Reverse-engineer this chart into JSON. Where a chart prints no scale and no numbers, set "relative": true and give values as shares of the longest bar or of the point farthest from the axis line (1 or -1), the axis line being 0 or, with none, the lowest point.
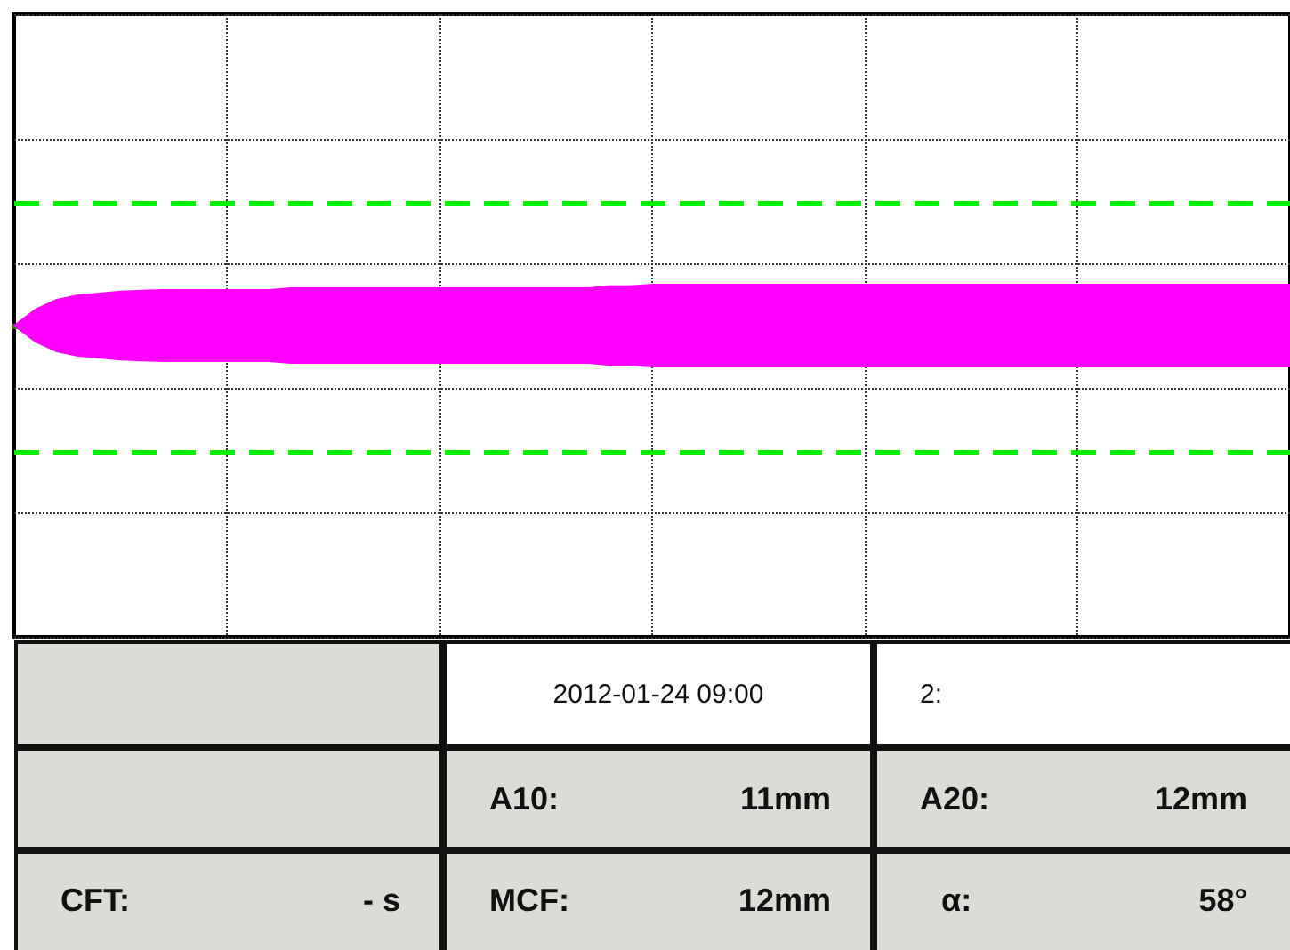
{
  "chart_data": {
    "type": "area",
    "relative": true,
    "grid": true,
    "categories": [
      null,
      null,
      null,
      null,
      null,
      null,
      null,
      null,
      null,
      null,
      null,
      null,
      null,
      null,
      null,
      null,
      null,
      null,
      null,
      null,
      null,
      null,
      null,
      null,
      null,
      null,
      null,
      null,
      null,
      null,
      null,
      null,
      null,
      null,
      null,
      null,
      null,
      null,
      null,
      null,
      null,
      null,
      null,
      null,
      null,
      null,
      null,
      null,
      null,
      null,
      null,
      null,
      null,
      null,
      null,
      null,
      null,
      null,
      null,
      null,
      null
    ],
    "series": [
      {
        "color": "#ff00ff",
        "values": [
          0,
          0.39,
          0.63,
          0.74,
          0.78,
          0.83,
          0.85,
          0.87,
          0.87,
          0.87,
          0.87,
          0.87,
          0.87,
          0.91,
          0.91,
          0.91,
          0.91,
          0.91,
          0.91,
          0.91,
          0.91,
          0.91,
          0.91,
          0.91,
          0.91,
          0.91,
          0.91,
          0.91,
          0.96,
          0.96,
          1,
          1,
          1,
          1,
          1,
          1,
          1,
          1,
          1,
          1,
          1,
          1,
          1,
          1,
          1,
          1,
          1,
          1,
          1,
          1,
          1,
          1,
          1,
          1,
          1,
          1,
          1,
          1,
          1,
          1,
          1
        ]
      },
      {
        "color": "#ff00ff",
        "values": [
          0,
          -0.39,
          -0.63,
          -0.74,
          -0.78,
          -0.83,
          -0.85,
          -0.87,
          -0.87,
          -0.87,
          -0.87,
          -0.87,
          -0.87,
          -0.91,
          -0.91,
          -0.91,
          -0.91,
          -0.91,
          -0.91,
          -0.91,
          -0.91,
          -0.91,
          -0.91,
          -0.91,
          -0.91,
          -0.91,
          -0.91,
          -0.91,
          -0.96,
          -0.96,
          -1,
          -1,
          -1,
          -1,
          -1,
          -1,
          -1,
          -1,
          -1,
          -1,
          -1,
          -1,
          -1,
          -1,
          -1,
          -1,
          -1,
          -1,
          -1,
          -1,
          -1,
          -1,
          -1,
          -1,
          -1,
          -1,
          -1,
          -1,
          -1,
          -1,
          -1
        ]
      }
    ],
    "ref_lines": [
      {
        "axis": "y",
        "value": 0,
        "color": "#3d7a00",
        "line_style": "solid"
      },
      {
        "axis": "y",
        "value": 3.0,
        "color": "#00ee00",
        "line_style": "dashed"
      },
      {
        "axis": "y",
        "value": -3.1,
        "color": "#00ee00",
        "line_style": "dashed"
      }
    ],
    "annotations": [
      "2012-01-24 09:00",
      "2:",
      "A10:",
      "11mm",
      "A20:",
      "12mm",
      "CFT:",
      "- s",
      "MCF:",
      "12mm",
      "α:",
      "58°"
    ]
  }
}
